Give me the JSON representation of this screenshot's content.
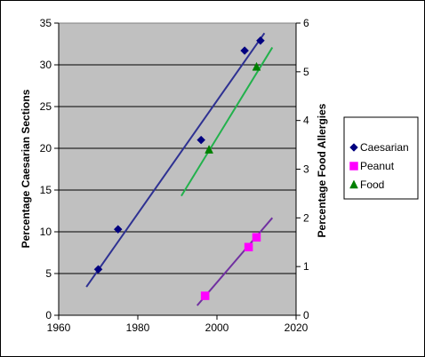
{
  "chart_data": {
    "type": "scatter",
    "title": "",
    "xlabel": "",
    "ylabel_left": "Percentage Caesarian Sections",
    "ylabel_right": "Percentage Food Allergies",
    "xlim": [
      1960,
      2020
    ],
    "ylim_left": [
      0,
      35
    ],
    "ylim_right": [
      0,
      6
    ],
    "x_ticks": [
      "1960",
      "1980",
      "2000",
      "2020"
    ],
    "y_left_ticks": [
      "0",
      "5",
      "10",
      "15",
      "20",
      "25",
      "30",
      "35"
    ],
    "y_right_ticks": [
      "0",
      "1",
      "2",
      "3",
      "4",
      "5",
      "6"
    ],
    "grid": "horizontal major gridlines",
    "plot_background": "#c0c0c0",
    "legend_position": "right",
    "series": [
      {
        "name": "Caesarian",
        "axis": "left",
        "marker": "diamond",
        "color": "#000080",
        "points": [
          [
            1970,
            5.5
          ],
          [
            1975,
            10.3
          ],
          [
            1996,
            21.0
          ],
          [
            2007,
            31.7
          ],
          [
            2011,
            32.9
          ]
        ],
        "trendline": {
          "color": "#2e3192",
          "x": [
            1967,
            2012
          ],
          "y": [
            3.4,
            33.8
          ]
        }
      },
      {
        "name": "Peanut",
        "axis": "right",
        "marker": "square",
        "color": "#ff00ff",
        "points": [
          [
            1997,
            0.4
          ],
          [
            2008,
            1.4
          ],
          [
            2010,
            1.6
          ]
        ],
        "trendline": {
          "color": "#7030a0",
          "x": [
            1995,
            2014
          ],
          "y": [
            0.2,
            2.0
          ]
        }
      },
      {
        "name": "Food",
        "axis": "right",
        "marker": "triangle",
        "color": "#008000",
        "points": [
          [
            1998,
            3.4
          ],
          [
            2010,
            5.1
          ]
        ],
        "trendline": {
          "color": "#22b14c",
          "x": [
            1991,
            2014
          ],
          "y": [
            2.45,
            5.5
          ]
        }
      }
    ]
  }
}
